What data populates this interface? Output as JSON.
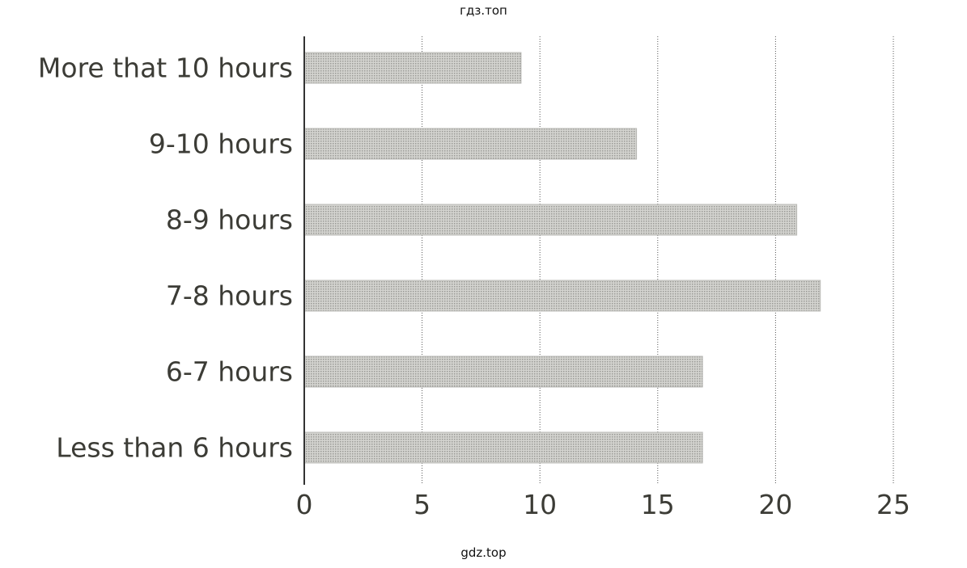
{
  "watermark_top": "гдз.топ",
  "watermark_bottom": "gdz.top",
  "chart_data": {
    "type": "bar",
    "orientation": "horizontal",
    "title": "",
    "xlabel": "",
    "ylabel": "",
    "categories": [
      "More that 10 hours",
      "9-10 hours",
      "8-9 hours",
      "7-8 hours",
      "6-7 hours",
      "Less than 6 hours"
    ],
    "values": [
      9.2,
      14.1,
      20.9,
      21.9,
      16.9,
      16.9
    ],
    "xlim": [
      0,
      25
    ],
    "xticks": [
      0,
      5,
      10,
      15,
      20,
      25
    ],
    "grid": "vertical dotted",
    "bar_color": "#c8c8c4"
  }
}
